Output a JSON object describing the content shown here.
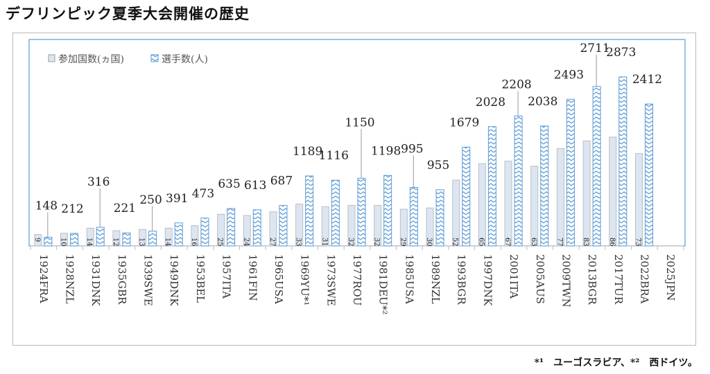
{
  "title": "デフリンピック夏季大会開催の歴史",
  "footnote": "*¹　ユーゴスラビア、*²　西ドイツ。",
  "chart_data": {
    "type": "bar",
    "title": "デフリンピック夏季大会開催の歴史",
    "categories": [
      "1924FRA",
      "1928NZL",
      "1931DNK",
      "1935GBR",
      "1939SWE",
      "1949DNK",
      "1953BEL",
      "1957ITA",
      "1961FIN",
      "1965USA",
      "1969YU*¹",
      "1973SWE",
      "1977ROU",
      "1981DEU*²",
      "1985USA",
      "1989NZL",
      "1993BGR",
      "1997DNK",
      "2001ITA",
      "2005AUS",
      "2009TWN",
      "2013BGR",
      "2017TUR",
      "2022BRA",
      "2025JPN"
    ],
    "series": [
      {
        "name": "参加国数(ヵ国)",
        "color": "#dce6f2",
        "values": [
          9,
          10,
          14,
          12,
          13,
          14,
          16,
          25,
          24,
          27,
          33,
          31,
          32,
          32,
          29,
          30,
          52,
          65,
          67,
          63,
          77,
          83,
          86,
          73,
          null
        ]
      },
      {
        "name": "選手数(人)",
        "color": "#5b9bd5",
        "values": [
          148,
          212,
          316,
          221,
          250,
          391,
          473,
          635,
          613,
          687,
          1189,
          1116,
          1150,
          1198,
          995,
          955,
          1679,
          2028,
          2208,
          2038,
          2493,
          2711,
          2873,
          2412,
          null
        ]
      }
    ],
    "legend": "top-left",
    "grid": false
  }
}
